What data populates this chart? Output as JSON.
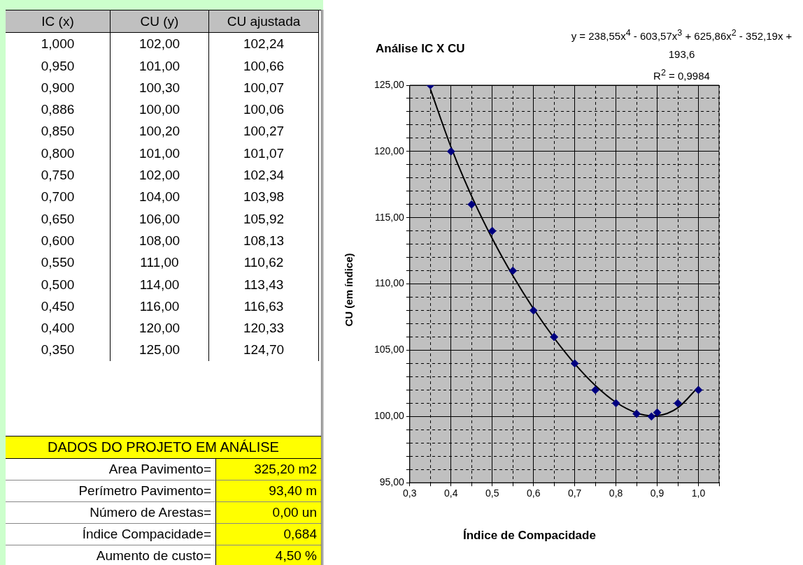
{
  "chart_data": [
    {
      "type": "other",
      "annotations": [
        "IC (x)",
        "CU (y)",
        "CU ajustada",
        "1,000",
        "102,00",
        "102,24",
        "0,950",
        "101,00",
        "100,66",
        "0,900",
        "100,30",
        "100,07",
        "0,886",
        "100,00",
        "100,06",
        "0,850",
        "100,20",
        "100,27",
        "0,800",
        "101,00",
        "101,07",
        "0,750",
        "102,00",
        "102,34",
        "0,700",
        "104,00",
        "103,98",
        "0,650",
        "106,00",
        "105,92",
        "0,600",
        "108,00",
        "108,13",
        "0,550",
        "111,00",
        "110,62",
        "0,500",
        "114,00",
        "113,43",
        "0,450",
        "116,00",
        "116,63",
        "0,400",
        "120,00",
        "120,33",
        "0,350",
        "125,00",
        "124,70"
      ]
    },
    {
      "type": "other",
      "title": "DADOS DO PROJETO EM ANÁLISE",
      "annotations": [
        "Area Pavimento=",
        "325,20 m2",
        "Perímetro Pavimento=",
        "93,40 m",
        "Número de Arestas=",
        "0,00 un",
        "Índice Compacidade=",
        "0,684",
        "Aumento de custo=",
        "4,50 %"
      ]
    },
    {
      "type": "scatter",
      "title": "Análise IC X CU",
      "xlabel": "Índice de Compacidade",
      "ylabel": "CU (em índice)",
      "annotations": [
        "y = 238,55x$^{4}$ - 603,57x$^{3}$ + 625,86x$^{2}$ - 352,19x + 193,6",
        "R$^{2}$ = 0,9984"
      ],
      "xlim": [
        0.3,
        1.05
      ],
      "xticks": [
        {
          "value": 0.3,
          "label": "0,3"
        },
        {
          "value": 0.35,
          "label": null
        },
        {
          "value": 0.4,
          "label": "0,4"
        },
        {
          "value": 0.45,
          "label": null
        },
        {
          "value": 0.5,
          "label": "0,5"
        },
        {
          "value": 0.55,
          "label": null
        },
        {
          "value": 0.6,
          "label": "0,6"
        },
        {
          "value": 0.65,
          "label": null
        },
        {
          "value": 0.7,
          "label": "0,7"
        },
        {
          "value": 0.75,
          "label": null
        },
        {
          "value": 0.8,
          "label": "0,8"
        },
        {
          "value": 0.85,
          "label": null
        },
        {
          "value": 0.9,
          "label": "0,9"
        },
        {
          "value": 0.95,
          "label": null
        },
        {
          "value": 1.0,
          "label": "1,0"
        },
        {
          "value": 1.05,
          "label": null
        }
      ],
      "ylim": [
        95,
        125
      ],
      "yticks": [
        {
          "value": 95,
          "label": "95,00"
        },
        {
          "value": 96,
          "label": null
        },
        {
          "value": 97,
          "label": null
        },
        {
          "value": 98,
          "label": null
        },
        {
          "value": 99,
          "label": null
        },
        {
          "value": 100,
          "label": "100,00"
        },
        {
          "value": 101,
          "label": null
        },
        {
          "value": 102,
          "label": null
        },
        {
          "value": 103,
          "label": null
        },
        {
          "value": 104,
          "label": null
        },
        {
          "value": 105,
          "label": "105,00"
        },
        {
          "value": 106,
          "label": null
        },
        {
          "value": 107,
          "label": null
        },
        {
          "value": 108,
          "label": null
        },
        {
          "value": 109,
          "label": null
        },
        {
          "value": 110,
          "label": "110,00"
        },
        {
          "value": 111,
          "label": null
        },
        {
          "value": 112,
          "label": null
        },
        {
          "value": 113,
          "label": null
        },
        {
          "value": 114,
          "label": null
        },
        {
          "value": 115,
          "label": "115,00"
        },
        {
          "value": 116,
          "label": null
        },
        {
          "value": 117,
          "label": null
        },
        {
          "value": 118,
          "label": null
        },
        {
          "value": 119,
          "label": null
        },
        {
          "value": 120,
          "label": "120,00"
        },
        {
          "value": 121,
          "label": null
        },
        {
          "value": 122,
          "label": null
        },
        {
          "value": 123,
          "label": null
        },
        {
          "value": 124,
          "label": null
        },
        {
          "value": 125,
          "label": "125,00"
        }
      ],
      "grid": true,
      "legend": false,
      "series": [
        {
          "type": "scatter",
          "color": "#000080",
          "marker": "diamond",
          "x": [
            1.0,
            0.95,
            0.9,
            0.886,
            0.85,
            0.8,
            0.75,
            0.7,
            0.65,
            0.6,
            0.55,
            0.5,
            0.45,
            0.4,
            0.35
          ],
          "values": [
            102,
            101,
            100.3,
            100,
            100.2,
            101,
            102,
            104,
            106,
            108,
            111,
            114,
            116,
            120,
            125
          ]
        },
        {
          "type": "line",
          "color": "#000000",
          "marker": "none",
          "line_style": "solid",
          "x": [
            1.0,
            0.95,
            0.9,
            0.886,
            0.85,
            0.8,
            0.75,
            0.7,
            0.65,
            0.6,
            0.55,
            0.5,
            0.45,
            0.4,
            0.35
          ],
          "values": [
            102.24,
            100.66,
            100.07,
            100.06,
            100.27,
            101.07,
            102.34,
            103.98,
            105.92,
            108.13,
            110.62,
            113.43,
            116.63,
            120.33,
            124.7
          ]
        }
      ]
    }
  ]
}
